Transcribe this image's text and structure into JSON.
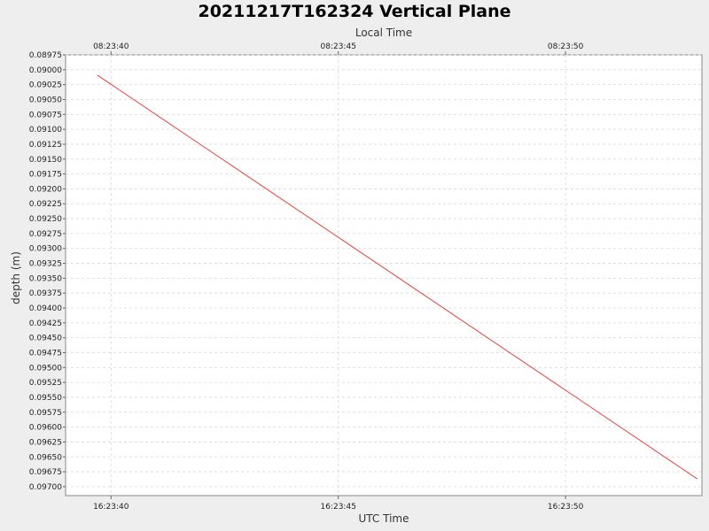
{
  "chart_data": {
    "type": "line",
    "title": "20211217T162324 Vertical Plane",
    "top_axis_label": "Local Time",
    "xlabel": "UTC Time",
    "ylabel": "depth (m)",
    "x_ticks_utc": [
      "16:23:40",
      "16:23:45",
      "16:23:50"
    ],
    "x_ticks_local": [
      "08:23:40",
      "08:23:45",
      "08:23:50"
    ],
    "x_tick_seconds": [
      40,
      45,
      50
    ],
    "xlim_seconds": [
      39.0,
      53.0
    ],
    "ylim": [
      0.08975,
      0.09715
    ],
    "y_inverted": true,
    "y_ticks": [
      "0.08975",
      "0.09000",
      "0.09025",
      "0.09050",
      "0.09075",
      "0.09100",
      "0.09125",
      "0.09150",
      "0.09175",
      "0.09200",
      "0.09225",
      "0.09250",
      "0.09275",
      "0.09300",
      "0.09325",
      "0.09350",
      "0.09375",
      "0.09400",
      "0.09425",
      "0.09450",
      "0.09475",
      "0.09500",
      "0.09525",
      "0.09550",
      "0.09575",
      "0.09600",
      "0.09625",
      "0.09650",
      "0.09675",
      "0.09700"
    ],
    "grid": true,
    "series": [
      {
        "color": "#e8413c",
        "x_seconds": [
          39.7,
          52.9
        ],
        "values": [
          0.09009,
          0.09687
        ]
      }
    ]
  }
}
